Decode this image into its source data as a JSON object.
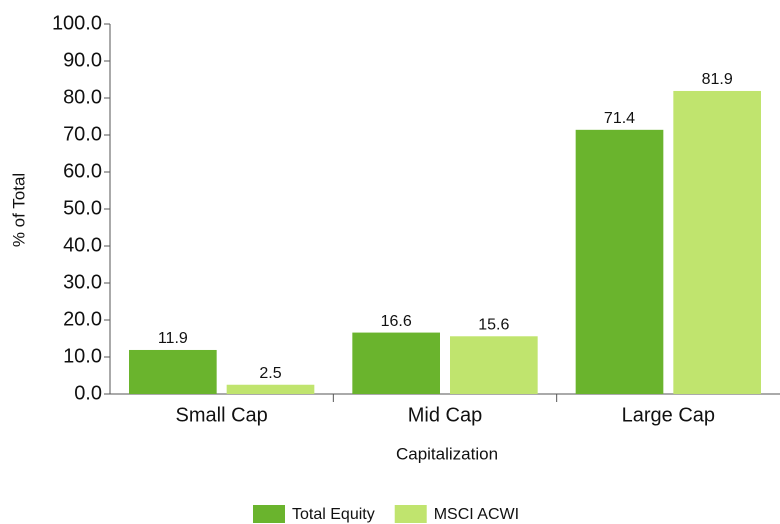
{
  "chart_data": {
    "type": "bar",
    "x_label": "Capitalization",
    "y_label": "% of Total",
    "categories": [
      "Small Cap",
      "Mid Cap",
      "Large Cap"
    ],
    "series": [
      {
        "name": "Total Equity",
        "color": "#6ab42d",
        "values": [
          11.9,
          16.6,
          71.4
        ]
      },
      {
        "name": "MSCI ACWI",
        "color": "#c0e46e",
        "values": [
          2.5,
          15.6,
          81.9
        ]
      }
    ],
    "ylim": [
      0,
      100
    ],
    "yticks": [
      {
        "value": 0,
        "label": "0.0"
      },
      {
        "value": 10,
        "label": "10.0"
      },
      {
        "value": 20,
        "label": "20.0"
      },
      {
        "value": 30,
        "label": "30.0"
      },
      {
        "value": 40,
        "label": "40.0"
      },
      {
        "value": 50,
        "label": "50.0"
      },
      {
        "value": 60,
        "label": "60.0"
      },
      {
        "value": 70,
        "label": "70.0"
      },
      {
        "value": 80,
        "label": "80.0"
      },
      {
        "value": 90,
        "label": "90.0"
      },
      {
        "value": 100,
        "label": "100.0"
      }
    ],
    "legend": "bottom"
  }
}
